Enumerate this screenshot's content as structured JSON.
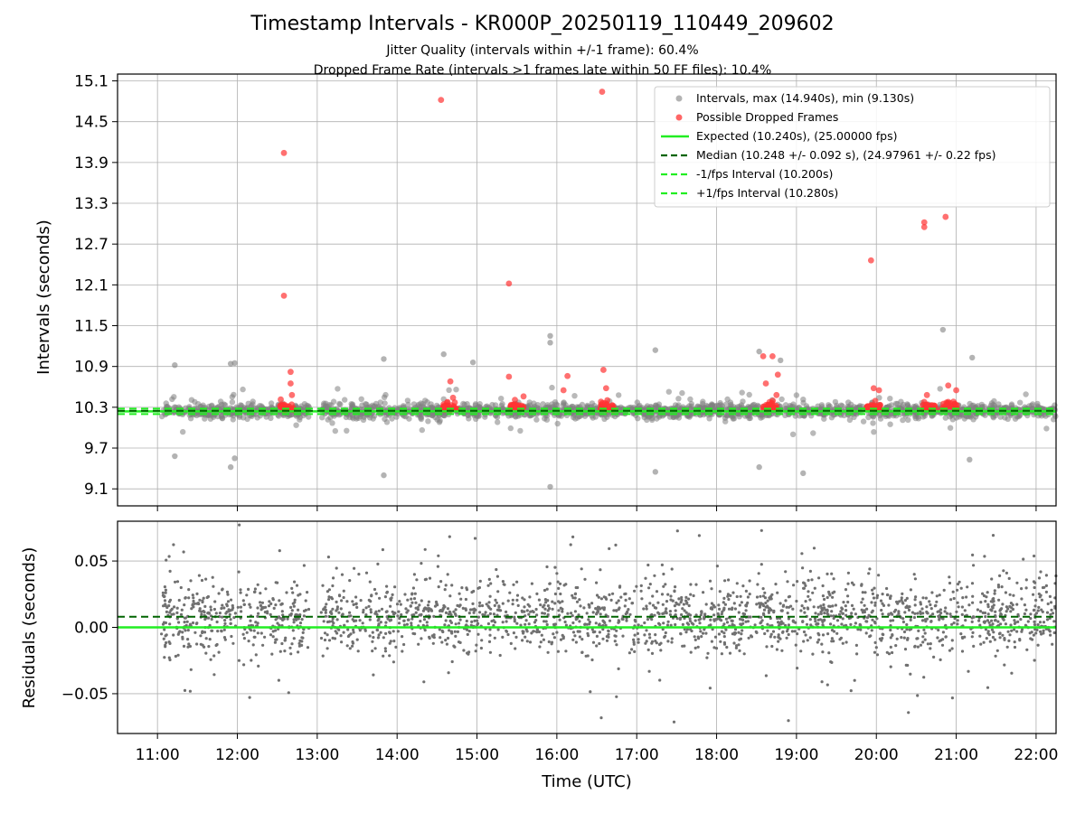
{
  "title": "Timestamp Intervals - KR000P_20250119_110449_209602",
  "subtitle1": "Jitter Quality (intervals within +/-1 frame): 60.4%",
  "subtitle2": "Dropped Frame Rate (intervals >1 frames late within 50 FF files): 10.4%",
  "colors": {
    "intervals": "#808080",
    "dropped": "#ff3333",
    "expected": "#22ee22",
    "median": "#006400",
    "bounds": "#22ee22",
    "residuals": "#707070"
  },
  "legend": {
    "intervals": "Intervals, max (14.940s), min (9.130s)",
    "dropped": "Possible Dropped Frames",
    "expected": "Expected (10.240s), (25.00000 fps)",
    "median": "Median (10.248 +/- 0.092 s), (24.97961 +/- 0.22 fps)",
    "minus": "-1/fps Interval (10.200s)",
    "plus": "+1/fps Interval (10.280s)"
  },
  "chart_data": [
    {
      "type": "scatter",
      "ylabel": "Intervals (seconds)",
      "ylim": [
        8.85,
        15.2
      ],
      "y_ticks": [
        "9.1",
        "9.7",
        "10.3",
        "10.9",
        "11.5",
        "12.1",
        "12.7",
        "13.3",
        "13.9",
        "14.5",
        "15.1"
      ],
      "y_tick_values": [
        9.1,
        9.7,
        10.3,
        10.9,
        11.5,
        12.1,
        12.7,
        13.3,
        13.9,
        14.5,
        15.1
      ],
      "x_range_hours": [
        10.5,
        22.25
      ],
      "grid": true,
      "legend_placement": "top-right",
      "lines": {
        "expected": 10.24,
        "median": 10.248,
        "minus_fps": 10.2,
        "plus_fps": 10.28
      },
      "intervals_summary": {
        "max": 14.94,
        "min": 9.13,
        "median": 10.248,
        "std": 0.092
      },
      "dropped_frames": [
        {
          "x": "12:35",
          "y": 14.04
        },
        {
          "x": "12:35",
          "y": 11.94
        },
        {
          "x": "12:40",
          "y": 10.82
        },
        {
          "x": "12:40",
          "y": 10.65
        },
        {
          "x": "12:41",
          "y": 10.48
        },
        {
          "x": "14:33",
          "y": 14.82
        },
        {
          "x": "14:40",
          "y": 10.68
        },
        {
          "x": "14:42",
          "y": 10.44
        },
        {
          "x": "15:24",
          "y": 12.12
        },
        {
          "x": "15:24",
          "y": 10.75
        },
        {
          "x": "15:35",
          "y": 10.46
        },
        {
          "x": "16:05",
          "y": 10.55
        },
        {
          "x": "16:08",
          "y": 10.76
        },
        {
          "x": "16:34",
          "y": 14.94
        },
        {
          "x": "16:35",
          "y": 10.85
        },
        {
          "x": "16:37",
          "y": 10.58
        },
        {
          "x": "18:35",
          "y": 11.05
        },
        {
          "x": "18:42",
          "y": 11.05
        },
        {
          "x": "18:37",
          "y": 10.65
        },
        {
          "x": "18:45",
          "y": 10.48
        },
        {
          "x": "18:46",
          "y": 10.78
        },
        {
          "x": "19:56",
          "y": 12.46
        },
        {
          "x": "19:58",
          "y": 10.58
        },
        {
          "x": "20:02",
          "y": 10.55
        },
        {
          "x": "20:36",
          "y": 13.02
        },
        {
          "x": "20:36",
          "y": 12.95
        },
        {
          "x": "20:38",
          "y": 10.48
        },
        {
          "x": "20:52",
          "y": 13.1
        },
        {
          "x": "20:54",
          "y": 10.62
        },
        {
          "x": "21:00",
          "y": 10.55
        }
      ],
      "dropped_clusters": [
        "12:37",
        "14:40",
        "15:30",
        "16:38",
        "18:40",
        "19:58",
        "20:40",
        "20:55"
      ],
      "notable_intervals": [
        {
          "x": "11:13",
          "y": 10.92
        },
        {
          "x": "11:13",
          "y": 9.58
        },
        {
          "x": "11:55",
          "y": 10.94
        },
        {
          "x": "11:58",
          "y": 10.95
        },
        {
          "x": "11:55",
          "y": 9.42
        },
        {
          "x": "11:58",
          "y": 9.55
        },
        {
          "x": "13:50",
          "y": 11.01
        },
        {
          "x": "13:50",
          "y": 9.3
        },
        {
          "x": "14:35",
          "y": 11.08
        },
        {
          "x": "14:57",
          "y": 10.96
        },
        {
          "x": "15:55",
          "y": 11.35
        },
        {
          "x": "15:55",
          "y": 11.25
        },
        {
          "x": "15:55",
          "y": 9.13
        },
        {
          "x": "17:14",
          "y": 11.14
        },
        {
          "x": "17:14",
          "y": 9.35
        },
        {
          "x": "18:32",
          "y": 11.12
        },
        {
          "x": "18:48",
          "y": 10.99
        },
        {
          "x": "18:32",
          "y": 9.42
        },
        {
          "x": "19:05",
          "y": 9.33
        },
        {
          "x": "20:50",
          "y": 11.44
        },
        {
          "x": "21:12",
          "y": 11.03
        },
        {
          "x": "21:10",
          "y": 9.53
        }
      ]
    },
    {
      "type": "scatter",
      "ylabel": "Residuals (seconds)",
      "ylim": [
        -0.08,
        0.08
      ],
      "y_ticks": [
        "−0.05",
        "0.00",
        "0.05"
      ],
      "y_tick_values": [
        -0.05,
        0.0,
        0.05
      ],
      "x_range_hours": [
        10.5,
        22.25
      ],
      "lines": {
        "zero": 0.0,
        "median_offset": 0.008
      },
      "xlabel": "Time (UTC)",
      "x_ticks": [
        "11:00",
        "12:00",
        "13:00",
        "14:00",
        "15:00",
        "16:00",
        "17:00",
        "18:00",
        "19:00",
        "20:00",
        "21:00",
        "22:00"
      ],
      "grid": true
    }
  ]
}
